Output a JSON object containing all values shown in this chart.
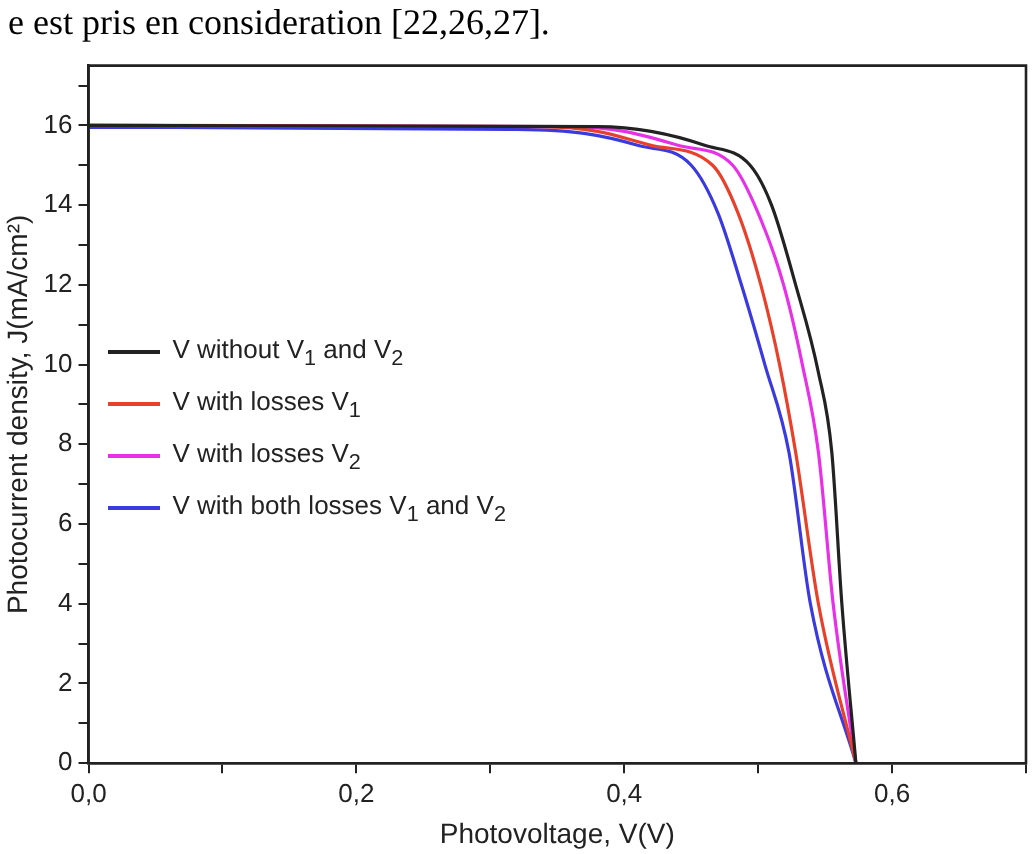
{
  "chart_data": {
    "type": "line",
    "xlabel": "Photovoltage, V(V)",
    "ylabel": "Photocurrent density, J(mA/cm²)",
    "annotations": [
      "e est pris en consideration [22,26,27]."
    ],
    "xlim": [
      0,
      0.7
    ],
    "xticks": [
      {
        "value": 0,
        "label": "0,0"
      },
      {
        "value": 0.1,
        "label": null
      },
      {
        "value": 0.2,
        "label": "0,2"
      },
      {
        "value": 0.3,
        "label": null
      },
      {
        "value": 0.4,
        "label": "0,4"
      },
      {
        "value": 0.5,
        "label": null
      },
      {
        "value": 0.6,
        "label": "0,6"
      },
      {
        "value": 0.7,
        "label": null
      }
    ],
    "ylim": [
      0,
      17.5
    ],
    "yticks": [
      0,
      {
        "value": 1,
        "label": null
      },
      2,
      {
        "value": 3,
        "label": null
      },
      4,
      {
        "value": 5,
        "label": null
      },
      6,
      {
        "value": 7,
        "label": null
      },
      8,
      {
        "value": 9,
        "label": null
      },
      10,
      {
        "value": 11,
        "label": null
      },
      12,
      {
        "value": 13,
        "label": null
      },
      14,
      {
        "value": 15,
        "label": null
      },
      16,
      {
        "value": 17,
        "label": null
      }
    ],
    "grid": false,
    "legend": "left",
    "marker": "none",
    "line_style": "solid",
    "series": [
      {
        "name": "V without V$_{1}$ and V$_{2}$",
        "color": "#222222",
        "x": [
          0,
          0.38,
          0.42,
          0.46,
          0.494,
          0.51,
          0.528,
          0.545,
          0.555,
          0.5625,
          0.573
        ],
        "values": [
          16,
          15.97,
          15.85,
          15.5,
          15,
          14,
          12,
          9.8,
          7.8,
          4,
          0
        ]
      },
      {
        "name": "V with losses V$_{1}$",
        "color": "#e8402a",
        "x": [
          0,
          0.34,
          0.38,
          0.42,
          0.466,
          0.485,
          0.502,
          0.516,
          0.528,
          0.545,
          0.573
        ],
        "values": [
          16,
          15.97,
          15.85,
          15.5,
          15,
          13.8,
          12,
          10,
          7.8,
          4,
          0
        ]
      },
      {
        "name": "V with losses V$_{2}$",
        "color": "#e830e8",
        "x": [
          0,
          0.36,
          0.4,
          0.44,
          0.481,
          0.5,
          0.519,
          0.533,
          0.545,
          0.556,
          0.573
        ],
        "values": [
          16,
          15.97,
          15.85,
          15.5,
          15,
          13.8,
          12,
          10,
          7.8,
          4,
          0
        ]
      },
      {
        "name": "V with both  losses V$_{1}$ and V$_{2}$",
        "color": "#3a3ae0",
        "x": [
          0,
          0.32,
          0.37,
          0.41,
          0.45,
          0.47,
          0.4875,
          0.505,
          0.523,
          0.539,
          0.573
        ],
        "values": [
          15.95,
          15.9,
          15.8,
          15.5,
          15,
          13.8,
          12,
          10,
          7.8,
          4,
          0
        ]
      }
    ]
  }
}
